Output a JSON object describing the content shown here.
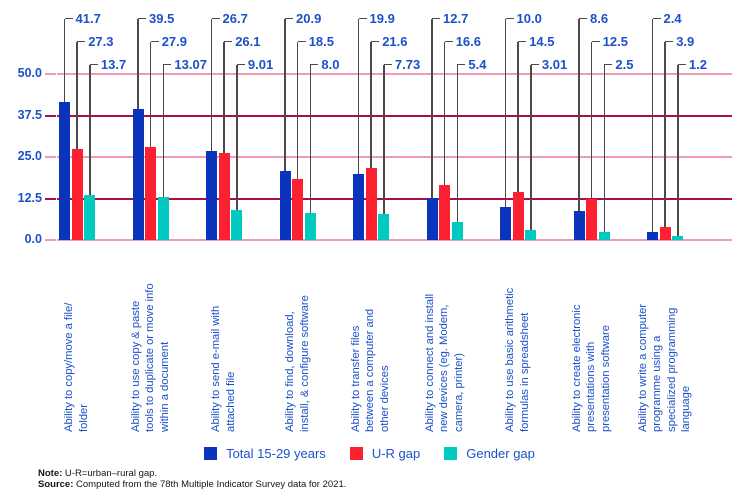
{
  "chart_data": {
    "type": "bar",
    "title": "",
    "xlabel": "",
    "ylabel": "",
    "ylim": [
      0,
      50
    ],
    "y_ticks": [
      "0.0",
      "12.5",
      "25.0",
      "37.5",
      "50.0"
    ],
    "y_tick_values": [
      0,
      12.5,
      25,
      37.5,
      50
    ],
    "grid": "on",
    "legend_position": "bottom",
    "categories": [
      "Ability to copy/move a file/\nfolder",
      "Ability to use copy & paste\ntools to duplicate or move info\nwithin a document",
      "Ability to send e-mail with\nattached file",
      "Ability to find, download,\ninstall, & configure software",
      "Ability to transfer files\nbetween a computer and\nother devices",
      "Ability to connect and install\nnew devices (eg. Modem,\ncamera, printer)",
      "Ability to use basic arithmetic\nformulas in spreadsheet",
      "Ability to create electronic\npresentations with\npresentation software",
      "Ability to write a computer\nprogramme using a\nspecialized programming\nlanguage"
    ],
    "series": [
      {
        "name": "Total 15-29 years",
        "color": "#0b34bd",
        "values": [
          41.7,
          39.5,
          26.7,
          20.9,
          19.9,
          12.7,
          10.0,
          8.6,
          2.4
        ],
        "labels": [
          "41.7",
          "39.5",
          "26.7",
          "20.9",
          "19.9",
          "12.7",
          "10.0",
          "8.6",
          "2.4"
        ]
      },
      {
        "name": "U-R gap",
        "color": "#fb2130",
        "values": [
          27.3,
          27.9,
          26.1,
          18.5,
          21.6,
          16.6,
          14.5,
          12.5,
          3.9
        ],
        "labels": [
          "27.3",
          "27.9",
          "26.1",
          "18.5",
          "21.6",
          "16.6",
          "14.5",
          "12.5",
          "3.9"
        ]
      },
      {
        "name": "Gender gap",
        "color": "#00c9c0",
        "values": [
          13.7,
          13.07,
          9.01,
          8.0,
          7.73,
          5.4,
          3.01,
          2.5,
          1.2
        ],
        "labels": [
          "13.7",
          "13.07",
          "9.01",
          "8.0",
          "7.73",
          "5.4",
          "3.01",
          "2.5",
          "1.2"
        ]
      }
    ]
  },
  "colors": {
    "grid_pink": "#ee9ab8",
    "grid_crimson": "#b00b50",
    "leader_gray": "#4a4a4a",
    "text_blue": "#1c51c8"
  },
  "footer": {
    "note_label": "Note:",
    "note_text": "U-R=urban–rural gap.",
    "source_label": "Source:",
    "source_text": "Computed from the 78th Multiple Indicator Survey data for 2021."
  }
}
